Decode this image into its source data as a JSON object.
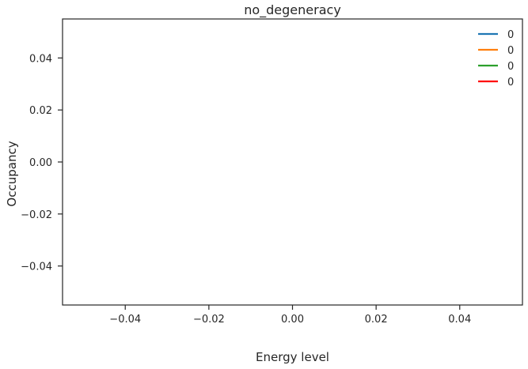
{
  "chart_data": {
    "type": "line",
    "title": "no_degeneracy",
    "xlabel": "Energy level",
    "ylabel": "Occupancy",
    "xlim": [
      -0.055,
      0.055
    ],
    "ylim": [
      -0.055,
      0.055
    ],
    "xticks": [
      -0.04,
      -0.02,
      0.0,
      0.02,
      0.04
    ],
    "xtick_labels": [
      "−0.04",
      "−0.02",
      "0.00",
      "0.02",
      "0.04"
    ],
    "yticks": [
      0.04,
      0.02,
      0.0,
      -0.02,
      -0.04
    ],
    "ytick_labels": [
      "0.04",
      "0.02",
      "0.00",
      "−0.02",
      "−0.04"
    ],
    "grid": false,
    "legend_position": "top-right",
    "series": [
      {
        "name": "0",
        "color": "#1f77b4",
        "x": [],
        "y": []
      },
      {
        "name": "0",
        "color": "#ff7f0e",
        "x": [],
        "y": []
      },
      {
        "name": "0",
        "color": "#2ca02c",
        "x": [],
        "y": []
      },
      {
        "name": "0",
        "color": "#ff0000",
        "x": [],
        "y": []
      }
    ]
  }
}
